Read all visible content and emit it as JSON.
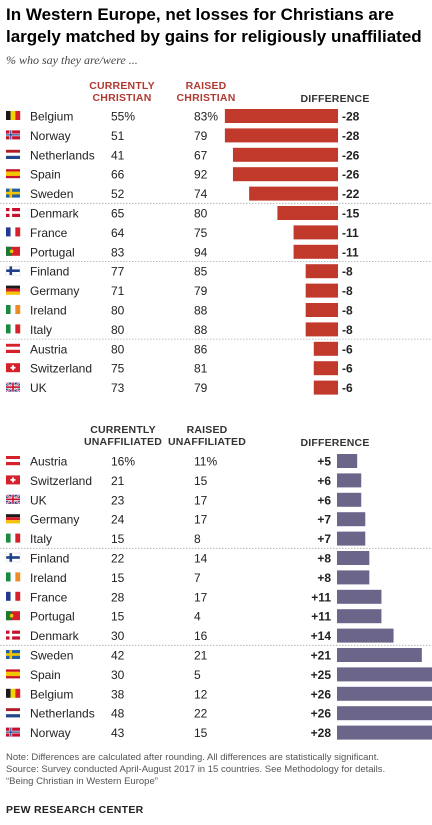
{
  "header": {
    "title": "In Western Europe, net losses for Christians are largely matched by gains for religiously unaffiliated",
    "subtitle": "% who say they are/were ..."
  },
  "colors": {
    "red_bar": "#c0392b",
    "purple_bar": "#6b6589",
    "header_red": "#b03a32",
    "divider": "#aaaaaa"
  },
  "chart_data": [
    {
      "type": "bar",
      "orientation": "horizontal",
      "columns": {
        "current": "CURRENTLY CHRISTIAN",
        "raised": "RAISED CHRISTIAN",
        "diff": "DIFFERENCE"
      },
      "rows": [
        {
          "country": "Belgium",
          "flag": "belgium-flag-icon",
          "current": "55%",
          "raised": "83%",
          "diff": -28
        },
        {
          "country": "Norway",
          "flag": "norway-flag-icon",
          "current": "51",
          "raised": "79",
          "diff": -28
        },
        {
          "country": "Netherlands",
          "flag": "netherlands-flag-icon",
          "current": "41",
          "raised": "67",
          "diff": -26
        },
        {
          "country": "Spain",
          "flag": "spain-flag-icon",
          "current": "66",
          "raised": "92",
          "diff": -26
        },
        {
          "country": "Sweden",
          "flag": "sweden-flag-icon",
          "current": "52",
          "raised": "74",
          "diff": -22
        },
        {
          "country": "Denmark",
          "flag": "denmark-flag-icon",
          "current": "65",
          "raised": "80",
          "diff": -15
        },
        {
          "country": "France",
          "flag": "france-flag-icon",
          "current": "64",
          "raised": "75",
          "diff": -11
        },
        {
          "country": "Portugal",
          "flag": "portugal-flag-icon",
          "current": "83",
          "raised": "94",
          "diff": -11
        },
        {
          "country": "Finland",
          "flag": "finland-flag-icon",
          "current": "77",
          "raised": "85",
          "diff": -8
        },
        {
          "country": "Germany",
          "flag": "germany-flag-icon",
          "current": "71",
          "raised": "79",
          "diff": -8
        },
        {
          "country": "Ireland",
          "flag": "ireland-flag-icon",
          "current": "80",
          "raised": "88",
          "diff": -8
        },
        {
          "country": "Italy",
          "flag": "italy-flag-icon",
          "current": "80",
          "raised": "88",
          "diff": -8
        },
        {
          "country": "Austria",
          "flag": "austria-flag-icon",
          "current": "80",
          "raised": "86",
          "diff": -6
        },
        {
          "country": "Switzerland",
          "flag": "switzerland-flag-icon",
          "current": "75",
          "raised": "81",
          "diff": -6
        },
        {
          "country": "UK",
          "flag": "uk-flag-icon",
          "current": "73",
          "raised": "79",
          "diff": -6
        }
      ]
    },
    {
      "type": "bar",
      "orientation": "horizontal",
      "columns": {
        "current": "CURRENTLY UNAFFILIATED",
        "raised": "RAISED UNAFFILIATED",
        "diff": "DIFFERENCE"
      },
      "rows": [
        {
          "country": "Austria",
          "flag": "austria-flag-icon",
          "current": "16%",
          "raised": "11%",
          "diff": 5
        },
        {
          "country": "Switzerland",
          "flag": "switzerland-flag-icon",
          "current": "21",
          "raised": "15",
          "diff": 6
        },
        {
          "country": "UK",
          "flag": "uk-flag-icon",
          "current": "23",
          "raised": "17",
          "diff": 6
        },
        {
          "country": "Germany",
          "flag": "germany-flag-icon",
          "current": "24",
          "raised": "17",
          "diff": 7
        },
        {
          "country": "Italy",
          "flag": "italy-flag-icon",
          "current": "15",
          "raised": "8",
          "diff": 7
        },
        {
          "country": "Finland",
          "flag": "finland-flag-icon",
          "current": "22",
          "raised": "14",
          "diff": 8
        },
        {
          "country": "Ireland",
          "flag": "ireland-flag-icon",
          "current": "15",
          "raised": "7",
          "diff": 8
        },
        {
          "country": "France",
          "flag": "france-flag-icon",
          "current": "28",
          "raised": "17",
          "diff": 11
        },
        {
          "country": "Portugal",
          "flag": "portugal-flag-icon",
          "current": "15",
          "raised": "4",
          "diff": 11
        },
        {
          "country": "Denmark",
          "flag": "denmark-flag-icon",
          "current": "30",
          "raised": "16",
          "diff": 14
        },
        {
          "country": "Sweden",
          "flag": "sweden-flag-icon",
          "current": "42",
          "raised": "21",
          "diff": 21
        },
        {
          "country": "Spain",
          "flag": "spain-flag-icon",
          "current": "30",
          "raised": "5",
          "diff": 25
        },
        {
          "country": "Belgium",
          "flag": "belgium-flag-icon",
          "current": "38",
          "raised": "12",
          "diff": 26
        },
        {
          "country": "Netherlands",
          "flag": "netherlands-flag-icon",
          "current": "48",
          "raised": "22",
          "diff": 26
        },
        {
          "country": "Norway",
          "flag": "norway-flag-icon",
          "current": "43",
          "raised": "15",
          "diff": 28
        }
      ]
    }
  ],
  "notes": {
    "line1": "Note: Differences are calculated after rounding. All differences are statistically significant.",
    "line2": "Source: Survey conducted April-August 2017 in 15 countries. See Methodology for details.",
    "line3": "“Being Christian in Western Europe”"
  },
  "brand": "PEW RESEARCH CENTER"
}
